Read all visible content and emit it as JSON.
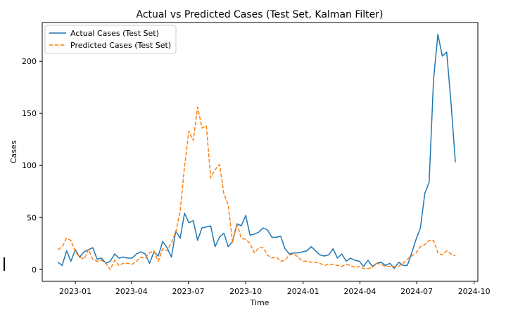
{
  "chart_data": {
    "type": "line",
    "title": "Actual vs Predicted Cases (Test Set, Kalman Filter)",
    "xlabel": "Time",
    "ylabel": "Cases",
    "xlim": [
      "2022-11-09",
      "2024-10-07"
    ],
    "ylim": [
      -11.3,
      237.3
    ],
    "x_ticks": [
      "2023-01",
      "2023-04",
      "2023-07",
      "2023-10",
      "2024-01",
      "2024-04",
      "2024-07",
      "2024-10"
    ],
    "x_tick_dates": [
      "2023-01-01",
      "2023-04-01",
      "2023-07-01",
      "2023-10-01",
      "2024-01-01",
      "2024-04-01",
      "2024-07-01",
      "2024-10-01"
    ],
    "y_ticks": [
      0,
      50,
      100,
      150,
      200
    ],
    "grid": false,
    "legend_position": "upper-left",
    "series": [
      {
        "name": "Actual Cases (Test Set)",
        "color": "#1f77b4",
        "style": "solid",
        "points": [
          [
            "2022-12-04",
            7
          ],
          [
            "2022-12-11",
            4
          ],
          [
            "2022-12-18",
            18
          ],
          [
            "2022-12-25",
            8
          ],
          [
            "2023-01-01",
            19
          ],
          [
            "2023-01-08",
            12
          ],
          [
            "2023-01-15",
            17
          ],
          [
            "2023-01-22",
            19
          ],
          [
            "2023-01-29",
            21
          ],
          [
            "2023-02-05",
            10
          ],
          [
            "2023-02-12",
            11
          ],
          [
            "2023-02-19",
            6
          ],
          [
            "2023-02-26",
            8
          ],
          [
            "2023-03-05",
            15
          ],
          [
            "2023-03-12",
            11
          ],
          [
            "2023-03-19",
            12
          ],
          [
            "2023-03-26",
            11
          ],
          [
            "2023-04-02",
            11
          ],
          [
            "2023-04-09",
            15
          ],
          [
            "2023-04-16",
            17
          ],
          [
            "2023-04-23",
            15
          ],
          [
            "2023-04-30",
            6
          ],
          [
            "2023-05-07",
            17
          ],
          [
            "2023-05-14",
            13
          ],
          [
            "2023-05-21",
            27
          ],
          [
            "2023-05-28",
            21
          ],
          [
            "2023-06-04",
            12
          ],
          [
            "2023-06-11",
            37
          ],
          [
            "2023-06-18",
            30
          ],
          [
            "2023-06-25",
            54
          ],
          [
            "2023-07-02",
            45
          ],
          [
            "2023-07-09",
            47
          ],
          [
            "2023-07-16",
            28
          ],
          [
            "2023-07-23",
            40
          ],
          [
            "2023-07-30",
            41
          ],
          [
            "2023-08-06",
            42
          ],
          [
            "2023-08-13",
            22
          ],
          [
            "2023-08-20",
            31
          ],
          [
            "2023-08-27",
            35
          ],
          [
            "2023-09-03",
            22
          ],
          [
            "2023-09-10",
            27
          ],
          [
            "2023-09-17",
            44
          ],
          [
            "2023-09-24",
            42
          ],
          [
            "2023-10-01",
            52
          ],
          [
            "2023-10-08",
            33
          ],
          [
            "2023-10-15",
            34
          ],
          [
            "2023-10-22",
            36
          ],
          [
            "2023-10-29",
            40
          ],
          [
            "2023-11-05",
            38
          ],
          [
            "2023-11-12",
            31
          ],
          [
            "2023-11-19",
            31
          ],
          [
            "2023-11-26",
            32
          ],
          [
            "2023-12-03",
            20
          ],
          [
            "2023-12-10",
            15
          ],
          [
            "2023-12-17",
            16
          ],
          [
            "2023-12-24",
            16
          ],
          [
            "2023-12-31",
            17
          ],
          [
            "2024-01-07",
            18
          ],
          [
            "2024-01-14",
            22
          ],
          [
            "2024-01-21",
            18
          ],
          [
            "2024-01-28",
            14
          ],
          [
            "2024-02-04",
            13
          ],
          [
            "2024-02-11",
            14
          ],
          [
            "2024-02-18",
            20
          ],
          [
            "2024-02-25",
            11
          ],
          [
            "2024-03-03",
            15
          ],
          [
            "2024-03-10",
            8
          ],
          [
            "2024-03-17",
            11
          ],
          [
            "2024-03-24",
            9
          ],
          [
            "2024-03-31",
            8
          ],
          [
            "2024-04-07",
            3
          ],
          [
            "2024-04-14",
            9
          ],
          [
            "2024-04-21",
            3
          ],
          [
            "2024-04-28",
            6
          ],
          [
            "2024-05-05",
            7
          ],
          [
            "2024-05-12",
            4
          ],
          [
            "2024-05-19",
            6
          ],
          [
            "2024-05-26",
            1
          ],
          [
            "2024-06-02",
            7
          ],
          [
            "2024-06-09",
            4
          ],
          [
            "2024-06-16",
            4
          ],
          [
            "2024-06-23",
            16
          ],
          [
            "2024-06-30",
            29
          ],
          [
            "2024-07-07",
            40
          ],
          [
            "2024-07-14",
            73
          ],
          [
            "2024-07-21",
            84
          ],
          [
            "2024-07-28",
            182
          ],
          [
            "2024-08-04",
            226
          ],
          [
            "2024-08-11",
            205
          ],
          [
            "2024-08-18",
            209
          ],
          [
            "2024-08-25",
            160
          ],
          [
            "2024-09-01",
            103
          ]
        ]
      },
      {
        "name": "Predicted Cases (Test Set)",
        "color": "#ff7f0e",
        "style": "dashed",
        "points": [
          [
            "2022-12-04",
            19
          ],
          [
            "2022-12-11",
            22
          ],
          [
            "2022-12-18",
            30
          ],
          [
            "2022-12-25",
            28
          ],
          [
            "2023-01-01",
            17
          ],
          [
            "2023-01-08",
            12
          ],
          [
            "2023-01-15",
            10
          ],
          [
            "2023-01-22",
            19
          ],
          [
            "2023-01-29",
            10
          ],
          [
            "2023-02-05",
            8
          ],
          [
            "2023-02-12",
            9
          ],
          [
            "2023-02-19",
            6
          ],
          [
            "2023-02-26",
            0
          ],
          [
            "2023-03-05",
            9
          ],
          [
            "2023-03-12",
            4
          ],
          [
            "2023-03-19",
            6
          ],
          [
            "2023-03-26",
            6
          ],
          [
            "2023-04-02",
            5
          ],
          [
            "2023-04-09",
            8
          ],
          [
            "2023-04-16",
            12
          ],
          [
            "2023-04-23",
            11
          ],
          [
            "2023-04-30",
            16
          ],
          [
            "2023-05-07",
            18
          ],
          [
            "2023-05-14",
            8
          ],
          [
            "2023-05-21",
            20
          ],
          [
            "2023-05-28",
            18
          ],
          [
            "2023-06-04",
            26
          ],
          [
            "2023-06-11",
            36
          ],
          [
            "2023-06-18",
            56
          ],
          [
            "2023-06-25",
            99
          ],
          [
            "2023-07-02",
            133
          ],
          [
            "2023-07-09",
            124
          ],
          [
            "2023-07-16",
            156
          ],
          [
            "2023-07-23",
            136
          ],
          [
            "2023-07-30",
            138
          ],
          [
            "2023-08-06",
            88
          ],
          [
            "2023-08-13",
            96
          ],
          [
            "2023-08-20",
            101
          ],
          [
            "2023-08-27",
            73
          ],
          [
            "2023-09-03",
            62
          ],
          [
            "2023-09-10",
            26
          ],
          [
            "2023-09-17",
            44
          ],
          [
            "2023-09-24",
            30
          ],
          [
            "2023-10-01",
            29
          ],
          [
            "2023-10-08",
            25
          ],
          [
            "2023-10-15",
            16
          ],
          [
            "2023-10-22",
            21
          ],
          [
            "2023-10-29",
            21
          ],
          [
            "2023-11-05",
            14
          ],
          [
            "2023-11-12",
            11
          ],
          [
            "2023-11-19",
            12
          ],
          [
            "2023-11-26",
            8
          ],
          [
            "2023-12-03",
            9
          ],
          [
            "2023-12-10",
            14
          ],
          [
            "2023-12-17",
            15
          ],
          [
            "2023-12-24",
            12
          ],
          [
            "2023-12-31",
            8
          ],
          [
            "2024-01-07",
            8
          ],
          [
            "2024-01-14",
            7
          ],
          [
            "2024-01-21",
            7
          ],
          [
            "2024-01-28",
            6
          ],
          [
            "2024-02-04",
            4
          ],
          [
            "2024-02-11",
            5
          ],
          [
            "2024-02-18",
            5
          ],
          [
            "2024-02-25",
            4
          ],
          [
            "2024-03-03",
            3
          ],
          [
            "2024-03-10",
            5
          ],
          [
            "2024-03-17",
            4
          ],
          [
            "2024-03-24",
            2
          ],
          [
            "2024-03-31",
            3
          ],
          [
            "2024-04-07",
            1
          ],
          [
            "2024-04-14",
            1
          ],
          [
            "2024-04-21",
            2
          ],
          [
            "2024-04-28",
            6
          ],
          [
            "2024-05-05",
            5
          ],
          [
            "2024-05-12",
            3
          ],
          [
            "2024-05-19",
            3
          ],
          [
            "2024-05-26",
            3
          ],
          [
            "2024-06-02",
            3
          ],
          [
            "2024-06-09",
            6
          ],
          [
            "2024-06-16",
            10
          ],
          [
            "2024-06-23",
            13
          ],
          [
            "2024-06-30",
            16
          ],
          [
            "2024-07-07",
            22
          ],
          [
            "2024-07-14",
            24
          ],
          [
            "2024-07-21",
            28
          ],
          [
            "2024-07-28",
            28
          ],
          [
            "2024-08-04",
            16
          ],
          [
            "2024-08-11",
            14
          ],
          [
            "2024-08-18",
            18
          ],
          [
            "2024-08-25",
            15
          ],
          [
            "2024-09-01",
            13
          ]
        ]
      }
    ]
  }
}
